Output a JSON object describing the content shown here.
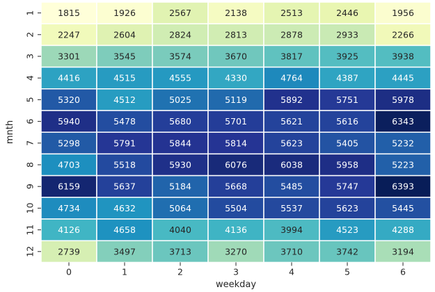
{
  "chart_data": {
    "type": "heatmap",
    "xlabel": "weekday",
    "ylabel": "mnth",
    "x_categories": [
      "0",
      "1",
      "2",
      "3",
      "4",
      "5",
      "6"
    ],
    "y_categories": [
      "1",
      "2",
      "3",
      "4",
      "5",
      "6",
      "7",
      "8",
      "9",
      "10",
      "11",
      "12"
    ],
    "values": [
      [
        1815,
        1926,
        2567,
        2138,
        2513,
        2446,
        1956
      ],
      [
        2247,
        2604,
        2824,
        2813,
        2878,
        2933,
        2266
      ],
      [
        3301,
        3545,
        3574,
        3670,
        3817,
        3925,
        3938
      ],
      [
        4416,
        4515,
        4555,
        4330,
        4764,
        4387,
        4445
      ],
      [
        5320,
        4512,
        5025,
        5119,
        5892,
        5751,
        5978
      ],
      [
        5940,
        5478,
        5680,
        5701,
        5621,
        5616,
        6343
      ],
      [
        5298,
        5791,
        5844,
        5814,
        5623,
        5405,
        5232
      ],
      [
        4703,
        5518,
        5930,
        6076,
        6038,
        5958,
        5223
      ],
      [
        6159,
        5637,
        5184,
        5668,
        5485,
        5747,
        6393
      ],
      [
        4734,
        4632,
        5064,
        5504,
        5537,
        5623,
        5445
      ],
      [
        4126,
        4658,
        4040,
        4136,
        3994,
        4523,
        4288
      ],
      [
        2739,
        3497,
        3713,
        3270,
        3710,
        3742,
        3194
      ]
    ],
    "vmin": 1815,
    "vmax": 6393,
    "colormap": "YlGnBu",
    "annotate": true,
    "colorbar": false
  }
}
